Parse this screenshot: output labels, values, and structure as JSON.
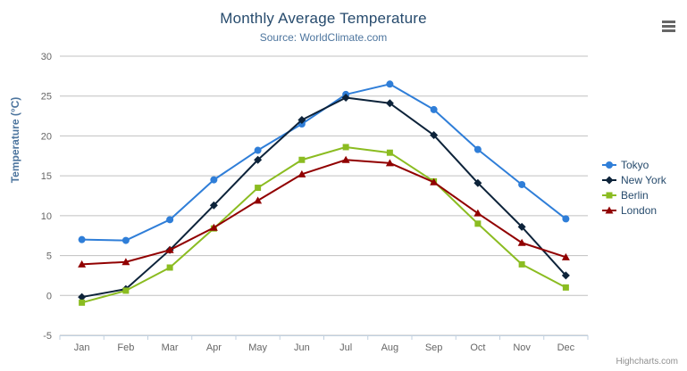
{
  "chart_data": {
    "type": "line",
    "title": "Monthly Average Temperature",
    "subtitle": "Source: WorldClimate.com",
    "categories": [
      "Jan",
      "Feb",
      "Mar",
      "Apr",
      "May",
      "Jun",
      "Jul",
      "Aug",
      "Sep",
      "Oct",
      "Nov",
      "Dec"
    ],
    "series": [
      {
        "name": "Tokyo",
        "color": "#2f7ed8",
        "marker": "circle",
        "values": [
          7.0,
          6.9,
          9.5,
          14.5,
          18.2,
          21.5,
          25.2,
          26.5,
          23.3,
          18.3,
          13.9,
          9.6
        ]
      },
      {
        "name": "New York",
        "color": "#0d233a",
        "marker": "diamond",
        "values": [
          -0.2,
          0.8,
          5.7,
          11.3,
          17.0,
          22.0,
          24.8,
          24.1,
          20.1,
          14.1,
          8.6,
          2.5
        ]
      },
      {
        "name": "Berlin",
        "color": "#8bbc21",
        "marker": "square",
        "values": [
          -0.9,
          0.6,
          3.5,
          8.4,
          13.5,
          17.0,
          18.6,
          17.9,
          14.3,
          9.0,
          3.9,
          1.0
        ]
      },
      {
        "name": "London",
        "color": "#910000",
        "marker": "triangle",
        "values": [
          3.9,
          4.2,
          5.7,
          8.5,
          11.9,
          15.2,
          17.0,
          16.6,
          14.2,
          10.3,
          6.6,
          4.8
        ]
      }
    ],
    "xlabel": "",
    "ylabel": "Temperature (°C)",
    "ylim": [
      -5,
      30
    ],
    "yticks": [
      -5,
      0,
      5,
      10,
      15,
      20,
      25,
      30
    ],
    "grid": true,
    "legend_position": "right",
    "grid_color": "#c0c0c0",
    "axis_line_color": "#c0d0e0",
    "tick_label_color": "#666666"
  },
  "credits": {
    "label": "Highcharts.com"
  }
}
